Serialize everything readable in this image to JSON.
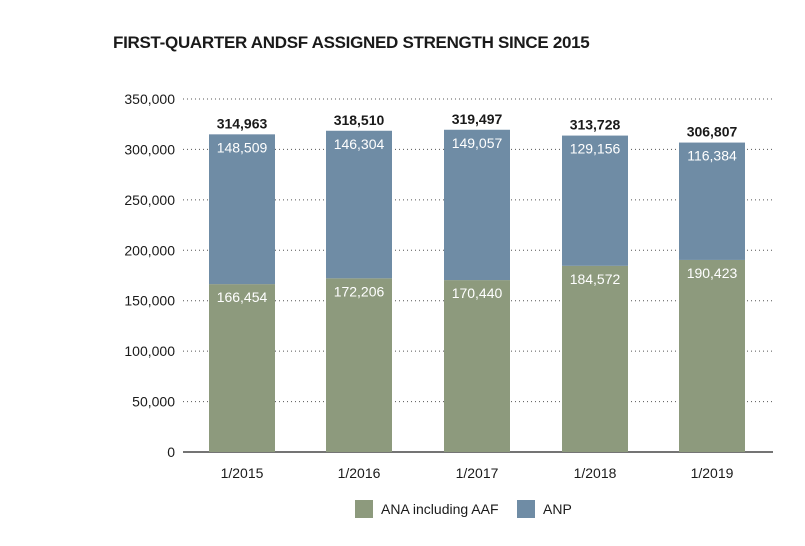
{
  "title": "FIRST-QUARTER ANDSF ASSIGNED STRENGTH SINCE 2015",
  "colors": {
    "ana": "#8d9a7d",
    "anp": "#6f8ca5",
    "grid": "#555555",
    "axis": "#222222"
  },
  "chart_data": {
    "type": "bar",
    "stacked": true,
    "categories": [
      "1/2015",
      "1/2016",
      "1/2017",
      "1/2018",
      "1/2019"
    ],
    "series": [
      {
        "name": "ANA including AAF",
        "values": [
          166454,
          172206,
          170440,
          184572,
          190423
        ],
        "labels": [
          "166,454",
          "172,206",
          "170,440",
          "184,572",
          "190,423"
        ]
      },
      {
        "name": "ANP",
        "values": [
          148509,
          146304,
          149057,
          129156,
          116384
        ],
        "labels": [
          "148,509",
          "146,304",
          "149,057",
          "129,156",
          "116,384"
        ]
      }
    ],
    "totals": [
      314963,
      318510,
      319497,
      313728,
      306807
    ],
    "total_labels": [
      "314,963",
      "318,510",
      "319,497",
      "313,728",
      "306,807"
    ],
    "yticks": [
      0,
      50000,
      100000,
      150000,
      200000,
      250000,
      300000,
      350000
    ],
    "ytick_labels": [
      "0",
      "50,000",
      "100,000",
      "150,000",
      "200,000",
      "250,000",
      "300,000",
      "350,000"
    ],
    "ylim": [
      0,
      350000
    ],
    "grid": "dotted",
    "legend": "bottom"
  }
}
